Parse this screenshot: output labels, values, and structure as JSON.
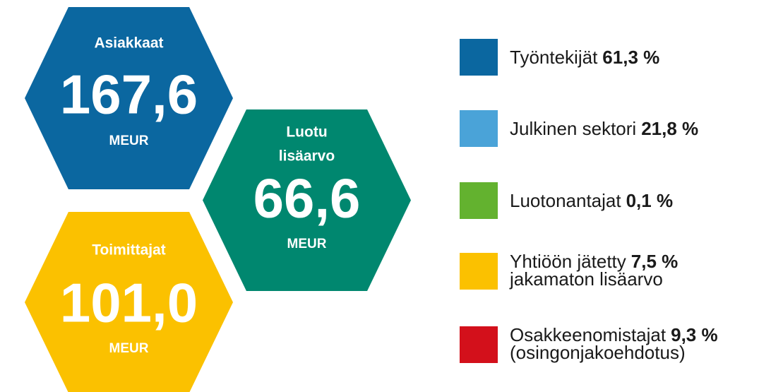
{
  "hexagons": [
    {
      "label_lines": [
        "Asiakkaat"
      ],
      "value": "167,6",
      "unit": "MEUR",
      "color": "#0b67a0"
    },
    {
      "label_lines": [
        "Luotu",
        "lisäarvo"
      ],
      "value": "66,6",
      "unit": "MEUR",
      "color": "#00876f"
    },
    {
      "label_lines": [
        "Toimittajat"
      ],
      "value": "101,0",
      "unit": "MEUR",
      "color": "#fbc100"
    }
  ],
  "legend": [
    {
      "label": "Työntekijät",
      "value": "61,3 %",
      "color": "#0b67a0"
    },
    {
      "label": "Julkinen sektori",
      "value": "21,8 %",
      "color": "#4aa3d8"
    },
    {
      "label": "Luotonantajat",
      "value": "0,1 %",
      "color": "#63b22f"
    },
    {
      "label": "Yhtiöön jätetty",
      "value": "7,5 %",
      "second_line": "jakamaton lisäarvo",
      "color": "#fbc100"
    },
    {
      "label": "Osakkeenomistajat",
      "value": "9,3 %",
      "second_line": "(osingonjakoehdotus)",
      "color": "#d3101b"
    }
  ]
}
